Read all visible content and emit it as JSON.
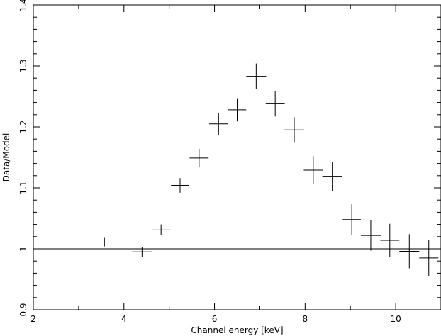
{
  "chart_data": {
    "type": "scatter",
    "title": "",
    "xlabel": "Channel energy [keV]",
    "ylabel": "Data/Model",
    "xlim": [
      2,
      11
    ],
    "ylim": [
      0.9,
      1.4
    ],
    "x_ticks": [
      2,
      4,
      6,
      8,
      10
    ],
    "y_ticks": [
      0.9,
      1,
      1.1,
      1.2,
      1.3,
      1.4
    ],
    "grid": false,
    "reference_line": 1.0,
    "color": "#000000",
    "points": [
      {
        "x": 3.57,
        "xerr": 0.19,
        "y": 1.011,
        "yerr": 0.007
      },
      {
        "x": 3.98,
        "xerr": 0.21,
        "y": 1.0,
        "yerr": 0.007
      },
      {
        "x": 4.4,
        "xerr": 0.22,
        "y": 0.995,
        "yerr": 0.008
      },
      {
        "x": 4.82,
        "xerr": 0.21,
        "y": 1.031,
        "yerr": 0.009
      },
      {
        "x": 5.24,
        "xerr": 0.2,
        "y": 1.104,
        "yerr": 0.012
      },
      {
        "x": 5.66,
        "xerr": 0.21,
        "y": 1.149,
        "yerr": 0.015
      },
      {
        "x": 6.09,
        "xerr": 0.21,
        "y": 1.205,
        "yerr": 0.018
      },
      {
        "x": 6.5,
        "xerr": 0.2,
        "y": 1.228,
        "yerr": 0.019
      },
      {
        "x": 6.92,
        "xerr": 0.22,
        "y": 1.283,
        "yerr": 0.021
      },
      {
        "x": 7.34,
        "xerr": 0.21,
        "y": 1.238,
        "yerr": 0.021
      },
      {
        "x": 7.76,
        "xerr": 0.22,
        "y": 1.195,
        "yerr": 0.021
      },
      {
        "x": 8.18,
        "xerr": 0.21,
        "y": 1.129,
        "yerr": 0.023
      },
      {
        "x": 8.6,
        "xerr": 0.22,
        "y": 1.119,
        "yerr": 0.024
      },
      {
        "x": 9.03,
        "xerr": 0.2,
        "y": 1.048,
        "yerr": 0.025
      },
      {
        "x": 9.45,
        "xerr": 0.22,
        "y": 1.022,
        "yerr": 0.025
      },
      {
        "x": 9.87,
        "xerr": 0.21,
        "y": 1.014,
        "yerr": 0.027
      },
      {
        "x": 10.3,
        "xerr": 0.22,
        "y": 0.996,
        "yerr": 0.028
      },
      {
        "x": 10.73,
        "xerr": 0.21,
        "y": 0.985,
        "yerr": 0.03
      }
    ]
  }
}
